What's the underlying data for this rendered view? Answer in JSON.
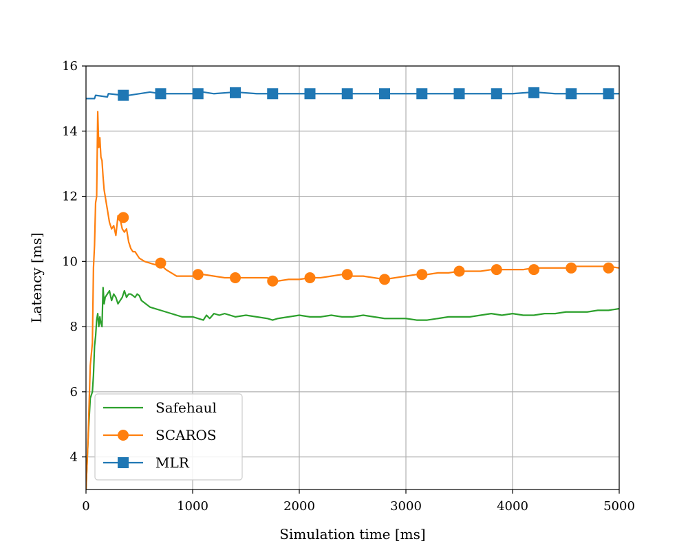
{
  "chart_data": {
    "type": "line",
    "title": "",
    "xlabel": "Simulation time [ms]",
    "ylabel": "Latency [ms]",
    "xlim": [
      0,
      5000
    ],
    "ylim": [
      3,
      16
    ],
    "xticks": [
      0,
      1000,
      2000,
      3000,
      4000,
      5000
    ],
    "yticks": [
      4,
      6,
      8,
      10,
      12,
      14,
      16
    ],
    "grid": true,
    "legend_position": "lower-left",
    "series": [
      {
        "name": "Safehaul",
        "color": "#2ca02c",
        "marker": "none",
        "x": [
          0,
          20,
          40,
          60,
          70,
          80,
          90,
          100,
          110,
          120,
          130,
          140,
          150,
          160,
          170,
          180,
          200,
          220,
          240,
          260,
          280,
          300,
          320,
          340,
          360,
          380,
          400,
          420,
          440,
          460,
          480,
          500,
          520,
          560,
          600,
          650,
          700,
          750,
          800,
          850,
          900,
          950,
          1000,
          1050,
          1100,
          1130,
          1160,
          1200,
          1250,
          1300,
          1400,
          1500,
          1600,
          1700,
          1750,
          1800,
          1900,
          2000,
          2100,
          2200,
          2300,
          2400,
          2500,
          2600,
          2700,
          2800,
          2900,
          3000,
          3100,
          3200,
          3300,
          3400,
          3500,
          3600,
          3700,
          3800,
          3900,
          4000,
          4100,
          4200,
          4300,
          4400,
          4500,
          4600,
          4700,
          4800,
          4900,
          5000
        ],
        "values": [
          3.0,
          4.6,
          5.8,
          6.0,
          6.5,
          7.4,
          7.7,
          8.2,
          8.4,
          8.0,
          8.3,
          8.1,
          8.0,
          9.2,
          8.7,
          8.9,
          9.0,
          9.1,
          8.8,
          9.0,
          8.9,
          8.7,
          8.8,
          8.9,
          9.1,
          8.9,
          9.0,
          9.0,
          8.95,
          8.9,
          9.0,
          8.95,
          8.8,
          8.7,
          8.6,
          8.55,
          8.5,
          8.45,
          8.4,
          8.35,
          8.3,
          8.3,
          8.3,
          8.25,
          8.2,
          8.35,
          8.25,
          8.4,
          8.35,
          8.4,
          8.3,
          8.35,
          8.3,
          8.25,
          8.2,
          8.25,
          8.3,
          8.35,
          8.3,
          8.3,
          8.35,
          8.3,
          8.3,
          8.35,
          8.3,
          8.25,
          8.25,
          8.25,
          8.2,
          8.2,
          8.25,
          8.3,
          8.3,
          8.3,
          8.35,
          8.4,
          8.35,
          8.4,
          8.35,
          8.35,
          8.4,
          8.4,
          8.45,
          8.45,
          8.45,
          8.5,
          8.5,
          8.55
        ]
      },
      {
        "name": "SCAROS",
        "color": "#ff7f0e",
        "marker": "circle",
        "x": [
          0,
          20,
          40,
          60,
          70,
          80,
          90,
          100,
          110,
          120,
          130,
          140,
          150,
          160,
          170,
          180,
          190,
          200,
          220,
          240,
          260,
          280,
          300,
          320,
          340,
          360,
          380,
          400,
          420,
          440,
          460,
          480,
          500,
          550,
          600,
          650,
          700,
          750,
          800,
          850,
          900,
          950,
          1000,
          1050,
          1100,
          1200,
          1300,
          1350,
          1400,
          1500,
          1600,
          1700,
          1750,
          1800,
          1900,
          2000,
          2100,
          2200,
          2300,
          2400,
          2450,
          2500,
          2600,
          2700,
          2800,
          2900,
          3000,
          3100,
          3150,
          3200,
          3300,
          3400,
          3500,
          3600,
          3700,
          3800,
          3850,
          3900,
          4000,
          4100,
          4200,
          4300,
          4400,
          4500,
          4550,
          4600,
          4700,
          4800,
          4900,
          5000
        ],
        "values": [
          3.0,
          4.6,
          6.8,
          7.5,
          9.8,
          10.5,
          11.8,
          12.0,
          14.6,
          13.5,
          13.8,
          13.2,
          13.1,
          12.6,
          12.2,
          12.0,
          11.8,
          11.6,
          11.2,
          11.0,
          11.1,
          10.8,
          11.4,
          11.3,
          11.0,
          10.9,
          11.0,
          10.6,
          10.4,
          10.3,
          10.3,
          10.2,
          10.1,
          10.0,
          9.95,
          9.9,
          9.9,
          9.75,
          9.65,
          9.55,
          9.55,
          9.55,
          9.55,
          9.6,
          9.6,
          9.55,
          9.5,
          9.5,
          9.5,
          9.5,
          9.5,
          9.5,
          9.4,
          9.4,
          9.45,
          9.45,
          9.5,
          9.5,
          9.55,
          9.6,
          9.6,
          9.55,
          9.55,
          9.5,
          9.45,
          9.5,
          9.55,
          9.6,
          9.6,
          9.6,
          9.65,
          9.65,
          9.7,
          9.7,
          9.7,
          9.75,
          9.75,
          9.75,
          9.75,
          9.75,
          9.8,
          9.8,
          9.8,
          9.8,
          9.8,
          9.85,
          9.85,
          9.85,
          9.85,
          9.8
        ],
        "marker_x": [
          350,
          700,
          1050,
          1400,
          1750,
          2100,
          2450,
          2800,
          3150,
          3500,
          3850,
          4200,
          4550,
          4900
        ],
        "marker_y": [
          11.35,
          9.95,
          9.6,
          9.5,
          9.4,
          9.5,
          9.6,
          9.45,
          9.6,
          9.7,
          9.75,
          9.75,
          9.8,
          9.8
        ]
      },
      {
        "name": "MLR",
        "color": "#1f77b4",
        "marker": "square",
        "x": [
          0,
          80,
          90,
          200,
          210,
          350,
          400,
          500,
          600,
          700,
          800,
          900,
          1000,
          1100,
          1200,
          1400,
          1600,
          1800,
          2000,
          2200,
          2400,
          2600,
          2800,
          3000,
          3200,
          3400,
          3600,
          3800,
          4000,
          4200,
          4400,
          4600,
          4800,
          5000
        ],
        "values": [
          15.0,
          15.0,
          15.1,
          15.05,
          15.15,
          15.1,
          15.1,
          15.15,
          15.2,
          15.15,
          15.15,
          15.15,
          15.15,
          15.2,
          15.15,
          15.2,
          15.15,
          15.15,
          15.15,
          15.15,
          15.15,
          15.15,
          15.15,
          15.15,
          15.15,
          15.15,
          15.15,
          15.15,
          15.15,
          15.2,
          15.15,
          15.15,
          15.15,
          15.15
        ],
        "marker_x": [
          350,
          700,
          1050,
          1400,
          1750,
          2100,
          2450,
          2800,
          3150,
          3500,
          3850,
          4200,
          4550,
          4900
        ],
        "marker_y": [
          15.1,
          15.15,
          15.15,
          15.18,
          15.15,
          15.15,
          15.15,
          15.15,
          15.15,
          15.15,
          15.15,
          15.18,
          15.15,
          15.15
        ]
      }
    ],
    "legend_order": [
      "Safehaul",
      "SCAROS",
      "MLR"
    ]
  }
}
